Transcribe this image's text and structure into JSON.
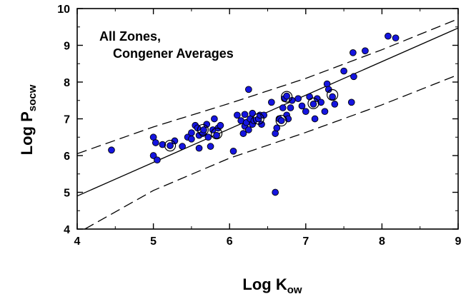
{
  "chart_data": {
    "type": "scatter",
    "xlabel": {
      "main": "Log K",
      "sub": "ow"
    },
    "ylabel": {
      "main": "Log P",
      "sub": "socw"
    },
    "xlim": [
      4,
      9
    ],
    "ylim": [
      4,
      10
    ],
    "xticks": [
      "4",
      "5",
      "6",
      "7",
      "8",
      "9"
    ],
    "yticks": [
      "4",
      "5",
      "6",
      "7",
      "8",
      "9",
      "10"
    ],
    "annotation": [
      "All Zones,",
      "Congener Averages"
    ],
    "colors": {
      "points": "#1515e0",
      "point_edge": "#000000",
      "lines": "#000000"
    },
    "points": [
      [
        4.45,
        6.15
      ],
      [
        5.0,
        6.5
      ],
      [
        5.03,
        6.35
      ],
      [
        5.0,
        6.0
      ],
      [
        5.05,
        5.88
      ],
      [
        5.12,
        6.3
      ],
      [
        5.22,
        6.27
      ],
      [
        5.28,
        6.4
      ],
      [
        5.38,
        6.25
      ],
      [
        5.45,
        6.5
      ],
      [
        5.5,
        6.45
      ],
      [
        5.5,
        6.62
      ],
      [
        5.55,
        6.82
      ],
      [
        5.58,
        6.75
      ],
      [
        5.6,
        6.55
      ],
      [
        5.6,
        6.2
      ],
      [
        5.65,
        6.6
      ],
      [
        5.66,
        6.7
      ],
      [
        5.7,
        6.85
      ],
      [
        5.72,
        6.5
      ],
      [
        5.75,
        6.25
      ],
      [
        5.78,
        6.7
      ],
      [
        5.8,
        7.0
      ],
      [
        5.83,
        6.55
      ],
      [
        5.85,
        6.75
      ],
      [
        5.88,
        6.82
      ],
      [
        6.05,
        6.12
      ],
      [
        6.1,
        7.1
      ],
      [
        6.15,
        6.95
      ],
      [
        6.18,
        6.6
      ],
      [
        6.2,
        7.12
      ],
      [
        6.2,
        6.8
      ],
      [
        6.22,
        6.9
      ],
      [
        6.25,
        6.7
      ],
      [
        6.27,
        7.0
      ],
      [
        6.3,
        7.15
      ],
      [
        6.3,
        6.85
      ],
      [
        6.25,
        7.8
      ],
      [
        6.32,
        6.95
      ],
      [
        6.38,
        7.0
      ],
      [
        6.4,
        7.1
      ],
      [
        6.42,
        6.85
      ],
      [
        6.45,
        7.1
      ],
      [
        6.55,
        7.45
      ],
      [
        6.6,
        5.0
      ],
      [
        6.6,
        6.6
      ],
      [
        6.62,
        6.75
      ],
      [
        6.65,
        7.0
      ],
      [
        6.68,
        6.95
      ],
      [
        6.7,
        7.3
      ],
      [
        6.72,
        7.55
      ],
      [
        6.75,
        7.62
      ],
      [
        6.75,
        7.1
      ],
      [
        6.77,
        7.0
      ],
      [
        6.8,
        7.3
      ],
      [
        6.82,
        7.5
      ],
      [
        6.9,
        7.55
      ],
      [
        6.95,
        7.35
      ],
      [
        7.0,
        7.2
      ],
      [
        7.05,
        7.6
      ],
      [
        7.1,
        7.4
      ],
      [
        7.12,
        7.0
      ],
      [
        7.15,
        7.55
      ],
      [
        7.2,
        7.45
      ],
      [
        7.25,
        7.2
      ],
      [
        7.28,
        7.95
      ],
      [
        7.3,
        7.8
      ],
      [
        7.35,
        7.6
      ],
      [
        7.38,
        7.4
      ],
      [
        7.5,
        8.3
      ],
      [
        7.6,
        7.45
      ],
      [
        7.62,
        8.8
      ],
      [
        7.63,
        8.15
      ],
      [
        7.78,
        8.85
      ],
      [
        8.08,
        9.25
      ],
      [
        8.18,
        9.2
      ]
    ],
    "circled_points": [
      [
        5.22,
        6.27
      ],
      [
        5.65,
        6.7
      ],
      [
        5.83,
        6.6
      ],
      [
        6.38,
        7.0
      ],
      [
        6.68,
        6.95
      ],
      [
        6.75,
        7.6
      ],
      [
        7.1,
        7.42
      ],
      [
        7.35,
        7.65
      ]
    ],
    "fit_line": {
      "name": "regression",
      "style": "solid",
      "x": [
        4,
        9
      ],
      "y": [
        4.9,
        9.47
      ]
    },
    "upper_bound": {
      "style": "dashed",
      "x": [
        4,
        5,
        6,
        7,
        8,
        9
      ],
      "y": [
        6.05,
        6.78,
        7.42,
        8.1,
        8.88,
        9.72
      ]
    },
    "lower_bound": {
      "style": "dashed",
      "x": [
        4.1,
        5,
        6,
        7,
        8,
        9
      ],
      "y": [
        4.0,
        5.05,
        5.93,
        6.63,
        7.38,
        8.2
      ]
    }
  }
}
